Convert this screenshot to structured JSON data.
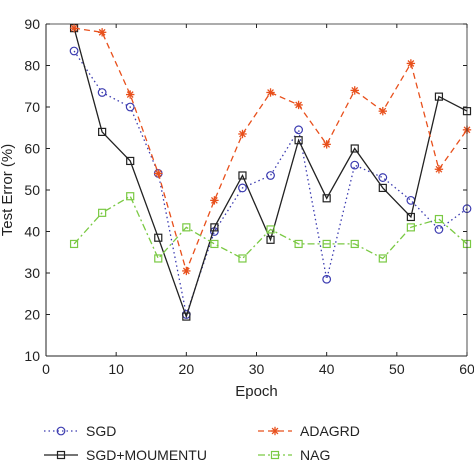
{
  "chart_data": {
    "type": "line",
    "xlabel": "Epoch",
    "ylabel": "Test Error (%)",
    "xlim": [
      0,
      60
    ],
    "ylim": [
      10,
      90
    ],
    "x_ticks": [
      0,
      10,
      20,
      30,
      40,
      50,
      60
    ],
    "y_ticks": [
      10,
      20,
      30,
      40,
      50,
      60,
      70,
      80,
      90
    ],
    "legend_position": "bottom",
    "series": [
      {
        "name": "SGD",
        "color": "#3b3bb0",
        "line": "dotted",
        "marker": "circle",
        "x": [
          4,
          8,
          12,
          16,
          20,
          24,
          28,
          32,
          36,
          40,
          44,
          48,
          52,
          56,
          60
        ],
        "y": [
          83.5,
          73.5,
          70,
          54,
          20,
          40,
          50.5,
          53.5,
          64.5,
          28.5,
          56,
          53,
          47.5,
          40.5,
          45.5
        ]
      },
      {
        "name": "SGD+MOUMENTU",
        "color": "#222222",
        "line": "solid",
        "marker": "square",
        "x": [
          4,
          8,
          12,
          16,
          20,
          24,
          28,
          32,
          36,
          40,
          44,
          48,
          52,
          56,
          60
        ],
        "y": [
          89,
          64,
          57,
          38.5,
          19.5,
          41,
          53.5,
          38,
          62,
          48,
          60,
          50.5,
          43.5,
          72.5,
          69
        ]
      },
      {
        "name": "ADAGRD",
        "color": "#e8501c",
        "line": "dashed",
        "marker": "star",
        "x": [
          4,
          8,
          12,
          16,
          20,
          24,
          28,
          32,
          36,
          40,
          44,
          48,
          52,
          56,
          60
        ],
        "y": [
          89,
          88,
          73,
          54,
          30.5,
          47.5,
          63.5,
          73.5,
          70.5,
          61,
          74,
          69,
          80.5,
          55,
          64.5
        ]
      },
      {
        "name": "NAG",
        "color": "#7ac943",
        "line": "dashdot",
        "marker": "square",
        "x": [
          4,
          8,
          12,
          16,
          20,
          24,
          28,
          32,
          36,
          40,
          44,
          48,
          52,
          56,
          60
        ],
        "y": [
          37,
          44.5,
          48.5,
          33.5,
          41,
          37,
          33.5,
          40.5,
          37,
          37,
          37,
          33.5,
          41,
          43,
          37
        ]
      }
    ]
  }
}
